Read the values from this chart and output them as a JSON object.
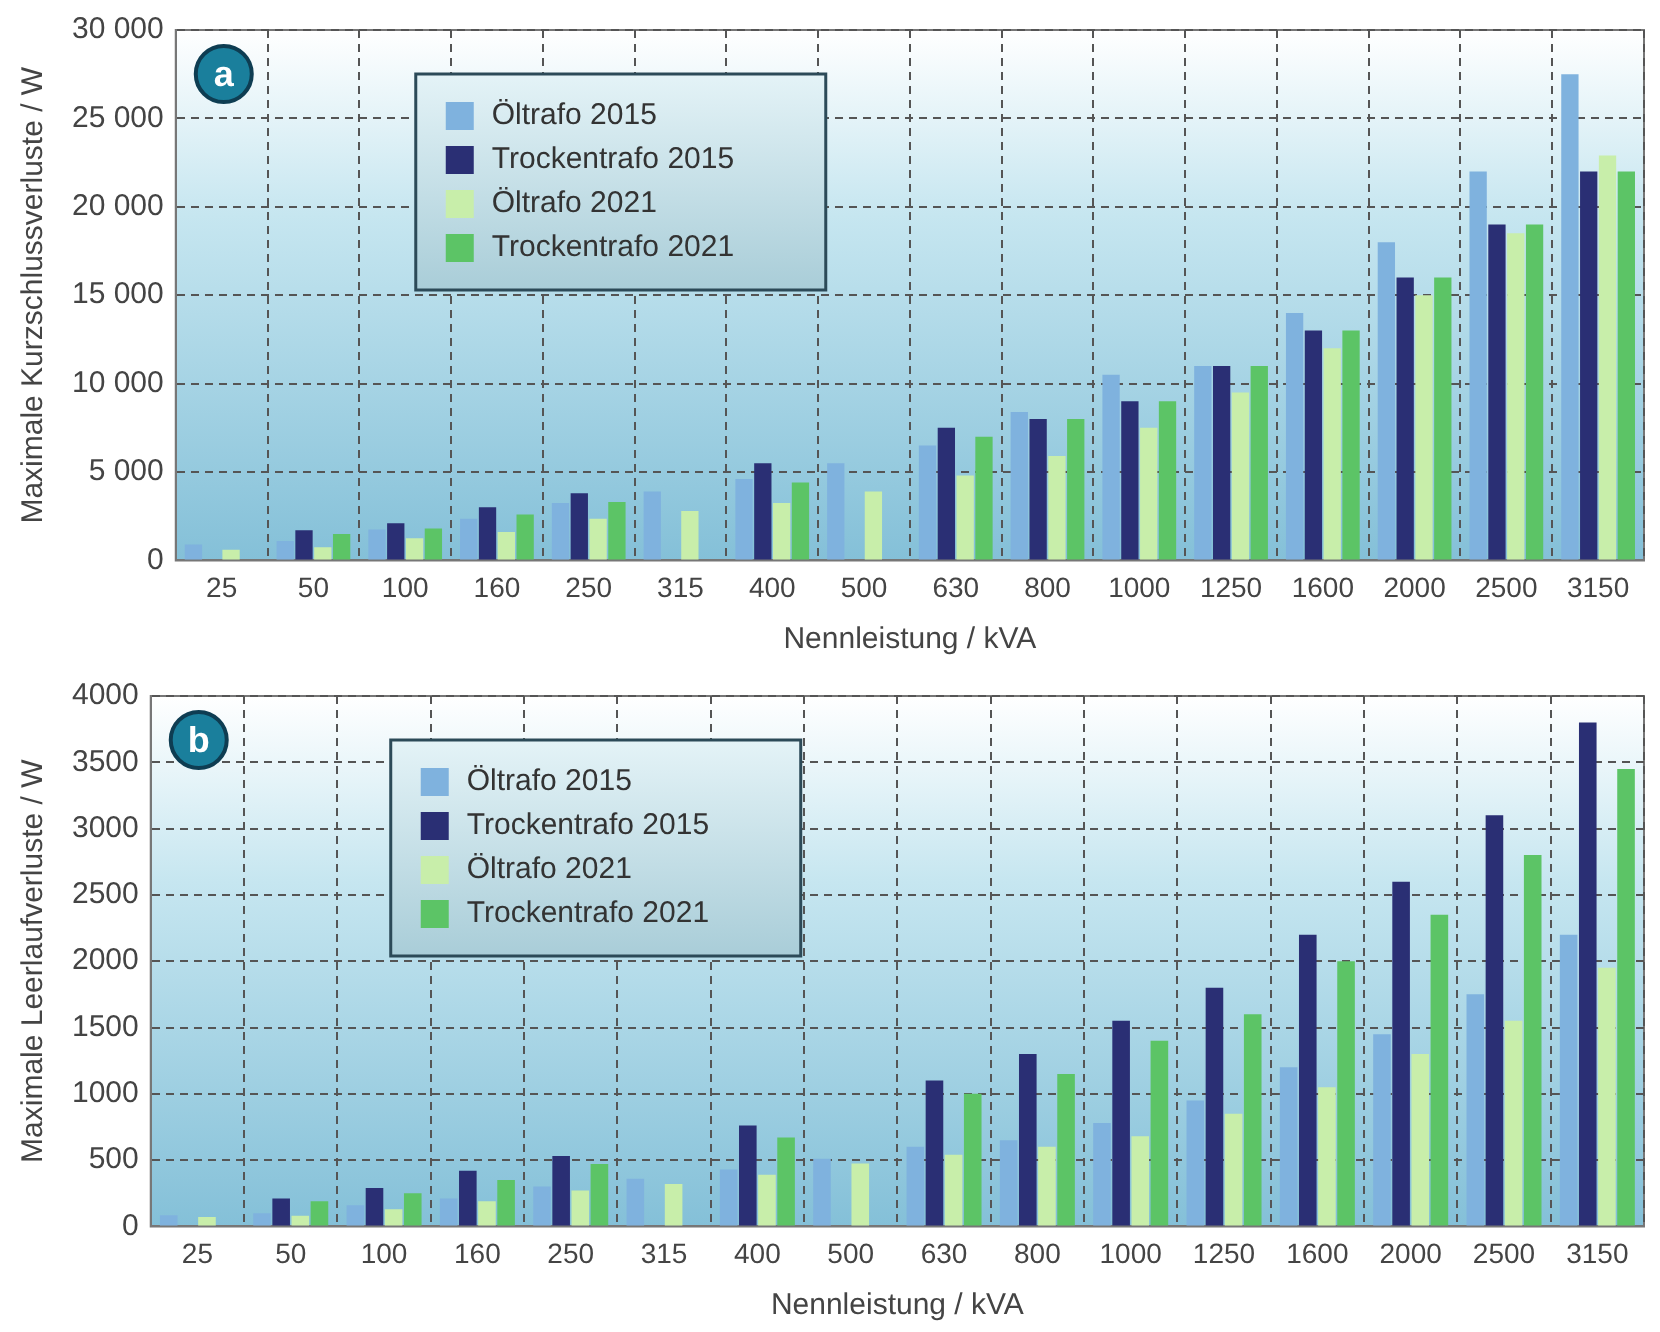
{
  "chart_data": [
    {
      "type": "bar",
      "annotations": [
        "a"
      ],
      "xlabel": "Nennleistung / kVA",
      "ylabel": "Maximale Kurzschlussverluste / W",
      "categories": [
        "25",
        "50",
        "100",
        "160",
        "250",
        "315",
        "400",
        "500",
        "630",
        "800",
        "1000",
        "1250",
        "1600",
        "2000",
        "2500",
        "3150"
      ],
      "series": [
        {
          "name": "Öltrafo 2015",
          "color": "#7fb2de",
          "values": [
            900,
            1100,
            1750,
            2350,
            3250,
            3900,
            4600,
            5500,
            6500,
            8400,
            10500,
            11000,
            14000,
            18000,
            22000,
            27500
          ]
        },
        {
          "name": "Trockentrafo 2015",
          "color": "#2a2f74",
          "values": [
            null,
            1700,
            2100,
            3000,
            3800,
            null,
            5500,
            null,
            7500,
            8000,
            9000,
            11000,
            13000,
            16000,
            19000,
            22000
          ]
        },
        {
          "name": "Öltrafo 2021",
          "color": "#c8eeaa",
          "values": [
            600,
            750,
            1250,
            1600,
            2350,
            2800,
            3250,
            3900,
            4800,
            5900,
            7500,
            9500,
            12000,
            15000,
            18500,
            22900
          ]
        },
        {
          "name": "Trockentrafo 2021",
          "color": "#5cc466",
          "values": [
            null,
            1500,
            1800,
            2600,
            3300,
            null,
            4400,
            null,
            7000,
            8000,
            9000,
            11000,
            13000,
            16000,
            19000,
            22000
          ]
        }
      ],
      "ylim": [
        0,
        30000
      ],
      "yticks": [
        0,
        {
          "value": 5000,
          "label": "5 000"
        },
        {
          "value": 10000,
          "label": "10 000"
        },
        {
          "value": 15000,
          "label": "15 000"
        },
        {
          "value": 20000,
          "label": "20 000"
        },
        {
          "value": 25000,
          "label": "25 000"
        },
        {
          "value": 30000,
          "label": "30 000"
        }
      ],
      "grid": true,
      "legend": "top left"
    },
    {
      "type": "bar",
      "annotations": [
        "b"
      ],
      "xlabel": "Nennleistung / kVA",
      "ylabel": "Maximale Leerlaufverluste / W",
      "categories": [
        "25",
        "50",
        "100",
        "160",
        "250",
        "315",
        "400",
        "500",
        "630",
        "800",
        "1000",
        "1250",
        "1600",
        "2000",
        "2500",
        "3150"
      ],
      "series": [
        {
          "name": "Öltrafo 2015",
          "color": "#7fb2de",
          "values": [
            85,
            100,
            160,
            210,
            300,
            360,
            430,
            510,
            600,
            650,
            780,
            950,
            1200,
            1450,
            1750,
            2200
          ]
        },
        {
          "name": "Trockentrafo 2015",
          "color": "#2a2f74",
          "values": [
            null,
            210,
            290,
            420,
            530,
            null,
            760,
            null,
            1100,
            1300,
            1550,
            1800,
            2200,
            2600,
            3100,
            3800
          ]
        },
        {
          "name": "Öltrafo 2021",
          "color": "#c8eeaa",
          "values": [
            70,
            80,
            130,
            190,
            270,
            320,
            390,
            475,
            540,
            600,
            680,
            850,
            1050,
            1300,
            1550,
            1950
          ]
        },
        {
          "name": "Trockentrafo 2021",
          "color": "#5cc466",
          "values": [
            null,
            190,
            250,
            350,
            470,
            null,
            670,
            null,
            1000,
            1150,
            1400,
            1600,
            2000,
            2350,
            2800,
            3450
          ]
        }
      ],
      "ylim": [
        0,
        4000
      ],
      "yticks": [
        0,
        500,
        1000,
        1500,
        2000,
        2500,
        3000,
        3500,
        4000
      ],
      "grid": true,
      "legend": "top left"
    }
  ]
}
